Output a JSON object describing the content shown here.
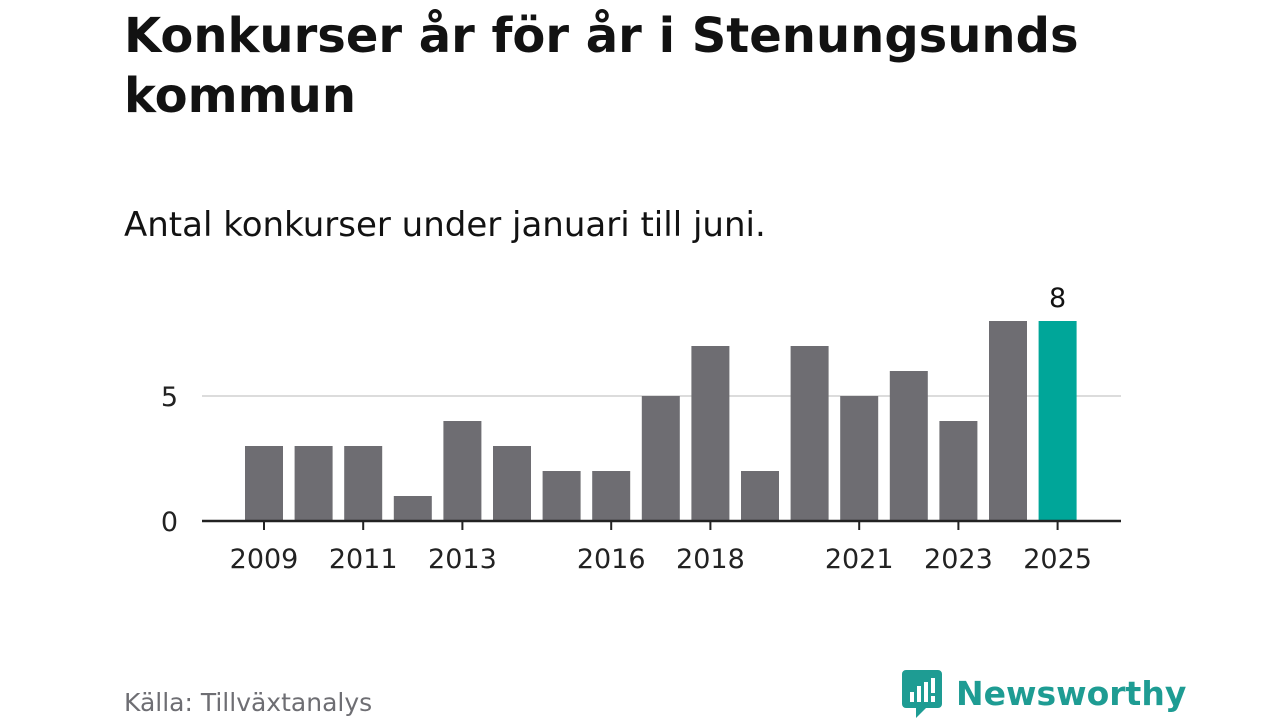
{
  "title": "Konkurser år för år i Stenungsunds kommun",
  "subtitle": "Antal konkurser under januari till juni.",
  "source": "Källa: Tillväxtanalys",
  "brand": {
    "name": "Newsworthy",
    "icon": "newsworthy-logo-icon",
    "color": "#1e9c93"
  },
  "colors": {
    "bar": "#6e6d72",
    "highlight": "#00a699",
    "grid": "#dcdcdc",
    "axis": "#222222"
  },
  "chart_data": {
    "type": "bar",
    "categories": [
      "2009",
      "2010",
      "2011",
      "2012",
      "2013",
      "2014",
      "2015",
      "2016",
      "2017",
      "2018",
      "2019",
      "2020",
      "2021",
      "2022",
      "2023",
      "2024",
      "2025"
    ],
    "values": [
      3,
      3,
      3,
      1,
      4,
      3,
      2,
      2,
      5,
      7,
      2,
      7,
      5,
      6,
      4,
      8,
      8
    ],
    "highlight_category": "2025",
    "data_labels": [
      {
        "category": "2025",
        "text": "8"
      }
    ],
    "x_tick_labels": [
      "2009",
      "2011",
      "2013",
      "2016",
      "2018",
      "2021",
      "2023",
      "2025"
    ],
    "y_ticks": [
      0,
      5
    ],
    "ylim": [
      0,
      8
    ],
    "xlabel": "",
    "ylabel": "",
    "grid": true,
    "legend": "none"
  }
}
